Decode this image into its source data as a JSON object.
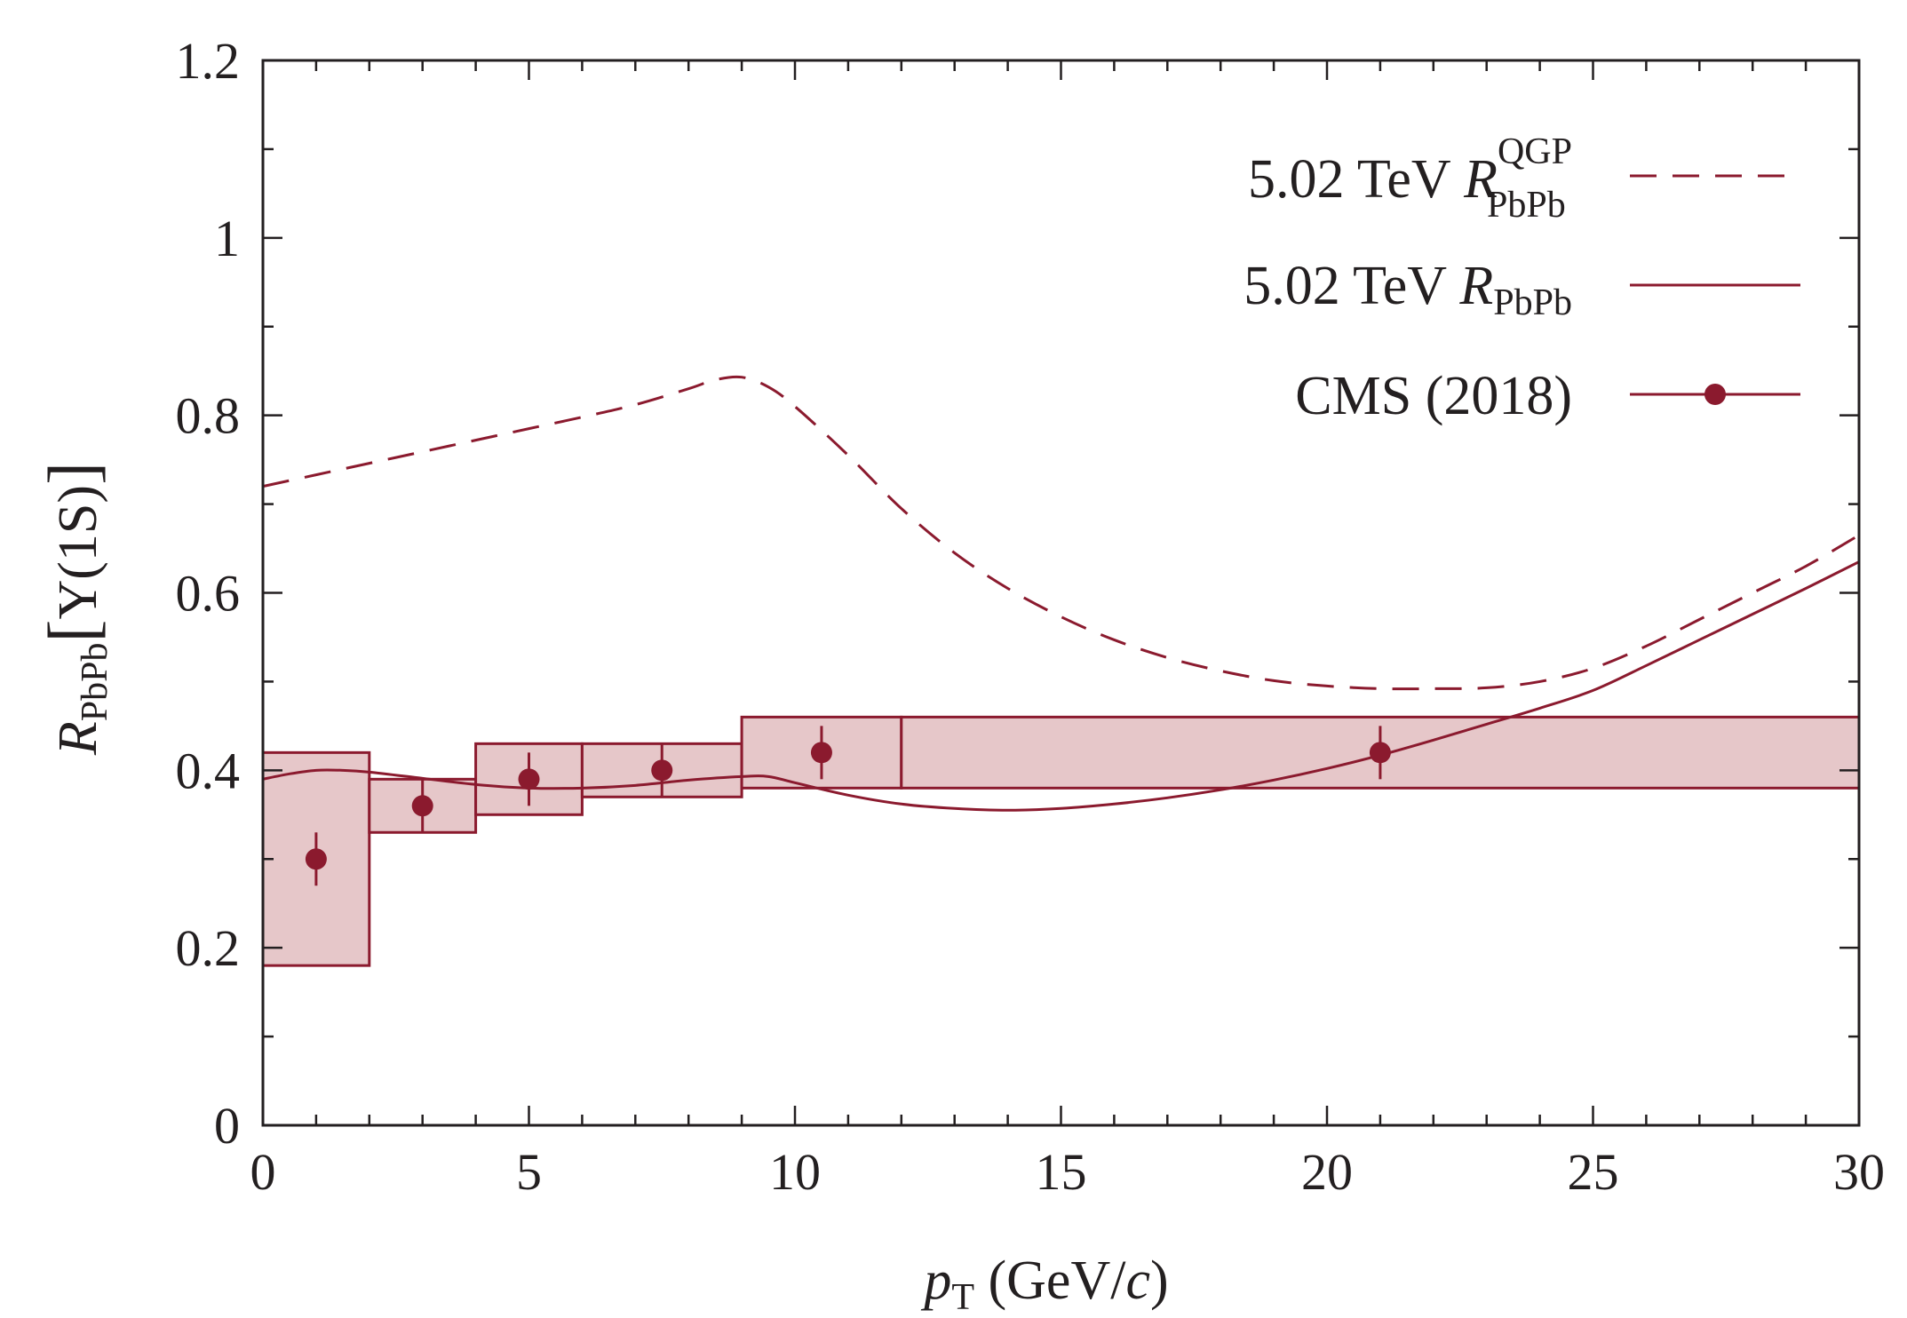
{
  "chart_data": {
    "type": "line",
    "title": "",
    "xlabel": {
      "main": "p",
      "sub": "T",
      "rest": " (GeV/",
      "unit_italic": "c",
      "close": ")"
    },
    "ylabel": {
      "main": "R",
      "sub": "PbPb",
      "bracket_open": "[",
      "state": "Υ(1S)",
      "bracket_close": "]"
    },
    "xlim": [
      0,
      30
    ],
    "ylim": [
      0,
      1.2
    ],
    "x_ticks": [
      0,
      5,
      10,
      15,
      20,
      25,
      30
    ],
    "x_tick_labels": [
      "0",
      "5",
      "10",
      "15",
      "20",
      "25",
      "30"
    ],
    "y_ticks": [
      0,
      0.2,
      0.4,
      0.6,
      0.8,
      1.0,
      1.2
    ],
    "y_tick_labels": [
      "0",
      "0.2",
      "0.4",
      "0.6",
      "0.8",
      "1",
      "1.2"
    ],
    "x_minor_step": 1,
    "y_minor_step": 0.1,
    "grid": false,
    "color": "#8b1a2e",
    "box_fill": "#e6c7c9",
    "legend": {
      "placement": "top-right",
      "entries": [
        {
          "key": "qgp",
          "text": "5.02 TeV ",
          "symbol": "R",
          "sub": "PbPb",
          "sup": "QGP",
          "style": "dashed"
        },
        {
          "key": "full",
          "text": "5.02 TeV ",
          "symbol": "R",
          "sub": "PbPb",
          "sup": "",
          "style": "solid"
        },
        {
          "key": "cms",
          "text": "CMS (2018)",
          "symbol": "",
          "sub": "",
          "sup": "",
          "style": "marker-line"
        }
      ]
    },
    "series": [
      {
        "name": "5.02 TeV R_PbPb^QGP",
        "style": "dashed",
        "x": [
          0,
          1,
          2,
          3,
          4,
          5,
          6,
          7,
          8,
          8.5,
          9,
          9.5,
          10,
          11,
          12,
          13,
          14,
          15,
          16,
          17,
          18,
          19,
          20,
          21,
          22,
          23,
          24,
          25,
          26,
          27,
          28,
          29,
          30
        ],
        "y": [
          0.72,
          0.733,
          0.746,
          0.759,
          0.772,
          0.785,
          0.798,
          0.812,
          0.83,
          0.84,
          0.843,
          0.832,
          0.81,
          0.755,
          0.695,
          0.645,
          0.605,
          0.573,
          0.547,
          0.527,
          0.512,
          0.501,
          0.495,
          0.492,
          0.492,
          0.493,
          0.5,
          0.515,
          0.54,
          0.57,
          0.6,
          0.63,
          0.665
        ]
      },
      {
        "name": "5.02 TeV R_PbPb",
        "style": "solid",
        "x": [
          0,
          0.5,
          1,
          1.5,
          2,
          3,
          4,
          5,
          6,
          7,
          8,
          9,
          9.5,
          10,
          11,
          12,
          13,
          14,
          15,
          16,
          17,
          18,
          19,
          20,
          21,
          22,
          23,
          24,
          25,
          26,
          27,
          28,
          29,
          30
        ],
        "y": [
          0.39,
          0.396,
          0.4,
          0.4,
          0.398,
          0.391,
          0.384,
          0.38,
          0.38,
          0.383,
          0.389,
          0.393,
          0.393,
          0.386,
          0.372,
          0.362,
          0.357,
          0.355,
          0.357,
          0.362,
          0.369,
          0.378,
          0.389,
          0.402,
          0.417,
          0.434,
          0.452,
          0.47,
          0.49,
          0.518,
          0.547,
          0.576,
          0.605,
          0.635
        ]
      }
    ],
    "points": {
      "name": "CMS (2018)",
      "x": [
        1,
        3,
        5,
        7.5,
        10.5,
        21
      ],
      "y": [
        0.3,
        0.36,
        0.39,
        0.4,
        0.42,
        0.42
      ],
      "stat_err": [
        0.03,
        0.03,
        0.03,
        0.03,
        0.03,
        0.03
      ]
    },
    "syst_boxes": [
      {
        "x0": 0,
        "x1": 2,
        "y0": 0.18,
        "y1": 0.42
      },
      {
        "x0": 2,
        "x1": 4,
        "y0": 0.33,
        "y1": 0.39
      },
      {
        "x0": 4,
        "x1": 6,
        "y0": 0.35,
        "y1": 0.43
      },
      {
        "x0": 6,
        "x1": 9,
        "y0": 0.37,
        "y1": 0.43
      },
      {
        "x0": 9,
        "x1": 12,
        "y0": 0.38,
        "y1": 0.46
      },
      {
        "x0": 12,
        "x1": 30,
        "y0": 0.38,
        "y1": 0.46
      }
    ]
  }
}
